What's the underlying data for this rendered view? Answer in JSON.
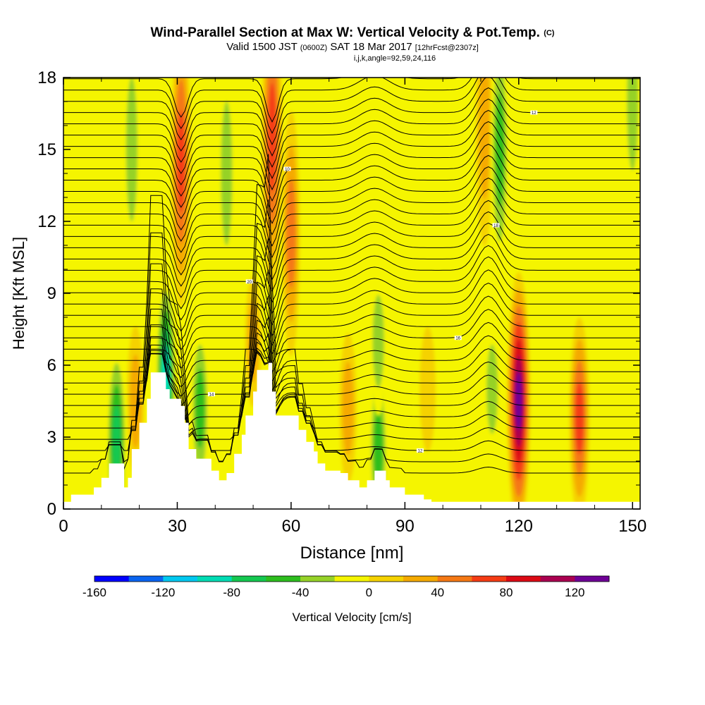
{
  "header": {
    "title": "Wind-Parallel Section at Max W: Vertical Velocity & Pot.Temp.",
    "title_unit": "(C)",
    "valid_prefix": "Valid 1500 JST",
    "valid_utc": "(0600Z)",
    "valid_date": "SAT 18 Mar 2017",
    "forecast": "[12hrFcst@2307z]",
    "indices": "i,j,k,angle=92,59,24,116"
  },
  "chart_data": {
    "type": "heatmap",
    "xlabel": "Distance [nm]",
    "ylabel": "Height [Kft MSL]",
    "xlim": [
      0,
      152
    ],
    "ylim": [
      0,
      18
    ],
    "x_ticks": [
      0,
      30,
      60,
      90,
      120,
      150
    ],
    "y_ticks": [
      0,
      3,
      6,
      9,
      12,
      15,
      18
    ],
    "colorbar": {
      "label": "Vertical Velocity [cm/s]",
      "min": -160,
      "max": 140,
      "step": 20,
      "tick_values": [
        -160,
        -120,
        -80,
        -40,
        0,
        40,
        80,
        120
      ],
      "colors": [
        "#0000ff",
        "#0a64f0",
        "#00c8f0",
        "#00dcb4",
        "#14c850",
        "#2dbe1e",
        "#96d228",
        "#f5f500",
        "#f5d200",
        "#f5aa00",
        "#f57814",
        "#f53c14",
        "#dc0a14",
        "#aa0050",
        "#6e0096"
      ]
    },
    "velocity_cores": [
      {
        "x": 31,
        "y": 14.5,
        "w": 72,
        "kind": "updraft"
      },
      {
        "x": 55,
        "y": 15.5,
        "w": 82,
        "kind": "updraft"
      },
      {
        "x": 60,
        "y": 11.5,
        "w": 50,
        "kind": "updraft"
      },
      {
        "x": 111,
        "y": 16.0,
        "w": 48,
        "kind": "updraft"
      },
      {
        "x": 120,
        "y": 4.5,
        "w": 130,
        "kind": "updraft"
      },
      {
        "x": 136,
        "y": 3.8,
        "w": 85,
        "kind": "updraft"
      },
      {
        "x": 75,
        "y": 4.2,
        "w": 45,
        "kind": "updraft"
      },
      {
        "x": 96,
        "y": 5.0,
        "w": 25,
        "kind": "updraft"
      },
      {
        "x": 19,
        "y": 4.5,
        "w": 45,
        "kind": "updraft"
      },
      {
        "x": 50,
        "y": 7.0,
        "w": 30,
        "kind": "updraft"
      },
      {
        "x": 14,
        "y": 2.8,
        "w": -85,
        "kind": "downdraft"
      },
      {
        "x": 27,
        "y": 5.5,
        "w": -90,
        "kind": "downdraft"
      },
      {
        "x": 36,
        "y": 4.2,
        "w": -65,
        "kind": "downdraft"
      },
      {
        "x": 83,
        "y": 2.5,
        "w": -65,
        "kind": "downdraft"
      },
      {
        "x": 83,
        "y": 7.0,
        "w": -45,
        "kind": "downdraft"
      },
      {
        "x": 115,
        "y": 15.0,
        "w": -55,
        "kind": "downdraft"
      },
      {
        "x": 18,
        "y": 15.0,
        "w": -45,
        "kind": "downdraft"
      },
      {
        "x": 43,
        "y": 14.0,
        "w": -45,
        "kind": "downdraft"
      },
      {
        "x": 113,
        "y": 5.0,
        "w": -40,
        "kind": "downdraft"
      },
      {
        "x": 150,
        "y": 17.0,
        "w": -40,
        "kind": "downdraft"
      }
    ],
    "terrain_kft": [
      [
        0,
        0.3
      ],
      [
        2,
        0.6
      ],
      [
        8,
        0.9
      ],
      [
        10,
        1.3
      ],
      [
        12,
        1.9
      ],
      [
        15,
        1.9
      ],
      [
        16,
        0.9
      ],
      [
        17,
        1.3
      ],
      [
        18,
        2.5
      ],
      [
        20,
        3.6
      ],
      [
        22,
        4.6
      ],
      [
        23,
        5.7
      ],
      [
        26,
        5.7
      ],
      [
        27,
        5.0
      ],
      [
        28,
        4.6
      ],
      [
        31,
        4.3
      ],
      [
        32,
        3.6
      ],
      [
        33,
        2.5
      ],
      [
        35,
        2.1
      ],
      [
        39,
        1.6
      ],
      [
        41,
        1.2
      ],
      [
        43,
        1.5
      ],
      [
        45,
        2.3
      ],
      [
        47,
        3.1
      ],
      [
        48,
        3.9
      ],
      [
        50,
        4.9
      ],
      [
        51,
        5.8
      ],
      [
        54,
        6.1
      ],
      [
        55,
        4.9
      ],
      [
        56,
        3.9
      ],
      [
        60,
        3.9
      ],
      [
        62,
        3.3
      ],
      [
        64,
        2.8
      ],
      [
        66,
        2.4
      ],
      [
        67,
        1.9
      ],
      [
        69,
        1.6
      ],
      [
        73,
        1.5
      ],
      [
        75,
        1.2
      ],
      [
        78,
        0.9
      ],
      [
        80,
        1.2
      ],
      [
        82,
        1.6
      ],
      [
        85,
        1.2
      ],
      [
        86,
        0.9
      ],
      [
        90,
        0.6
      ],
      [
        95,
        0.4
      ],
      [
        97,
        0.3
      ],
      [
        152,
        0.3
      ]
    ],
    "isentrope_labels": [
      "16",
      "14",
      "12",
      "10",
      "18",
      "20"
    ]
  },
  "colors": {
    "background": "#ffffff",
    "frame": "#000000",
    "contour": "#000000"
  }
}
